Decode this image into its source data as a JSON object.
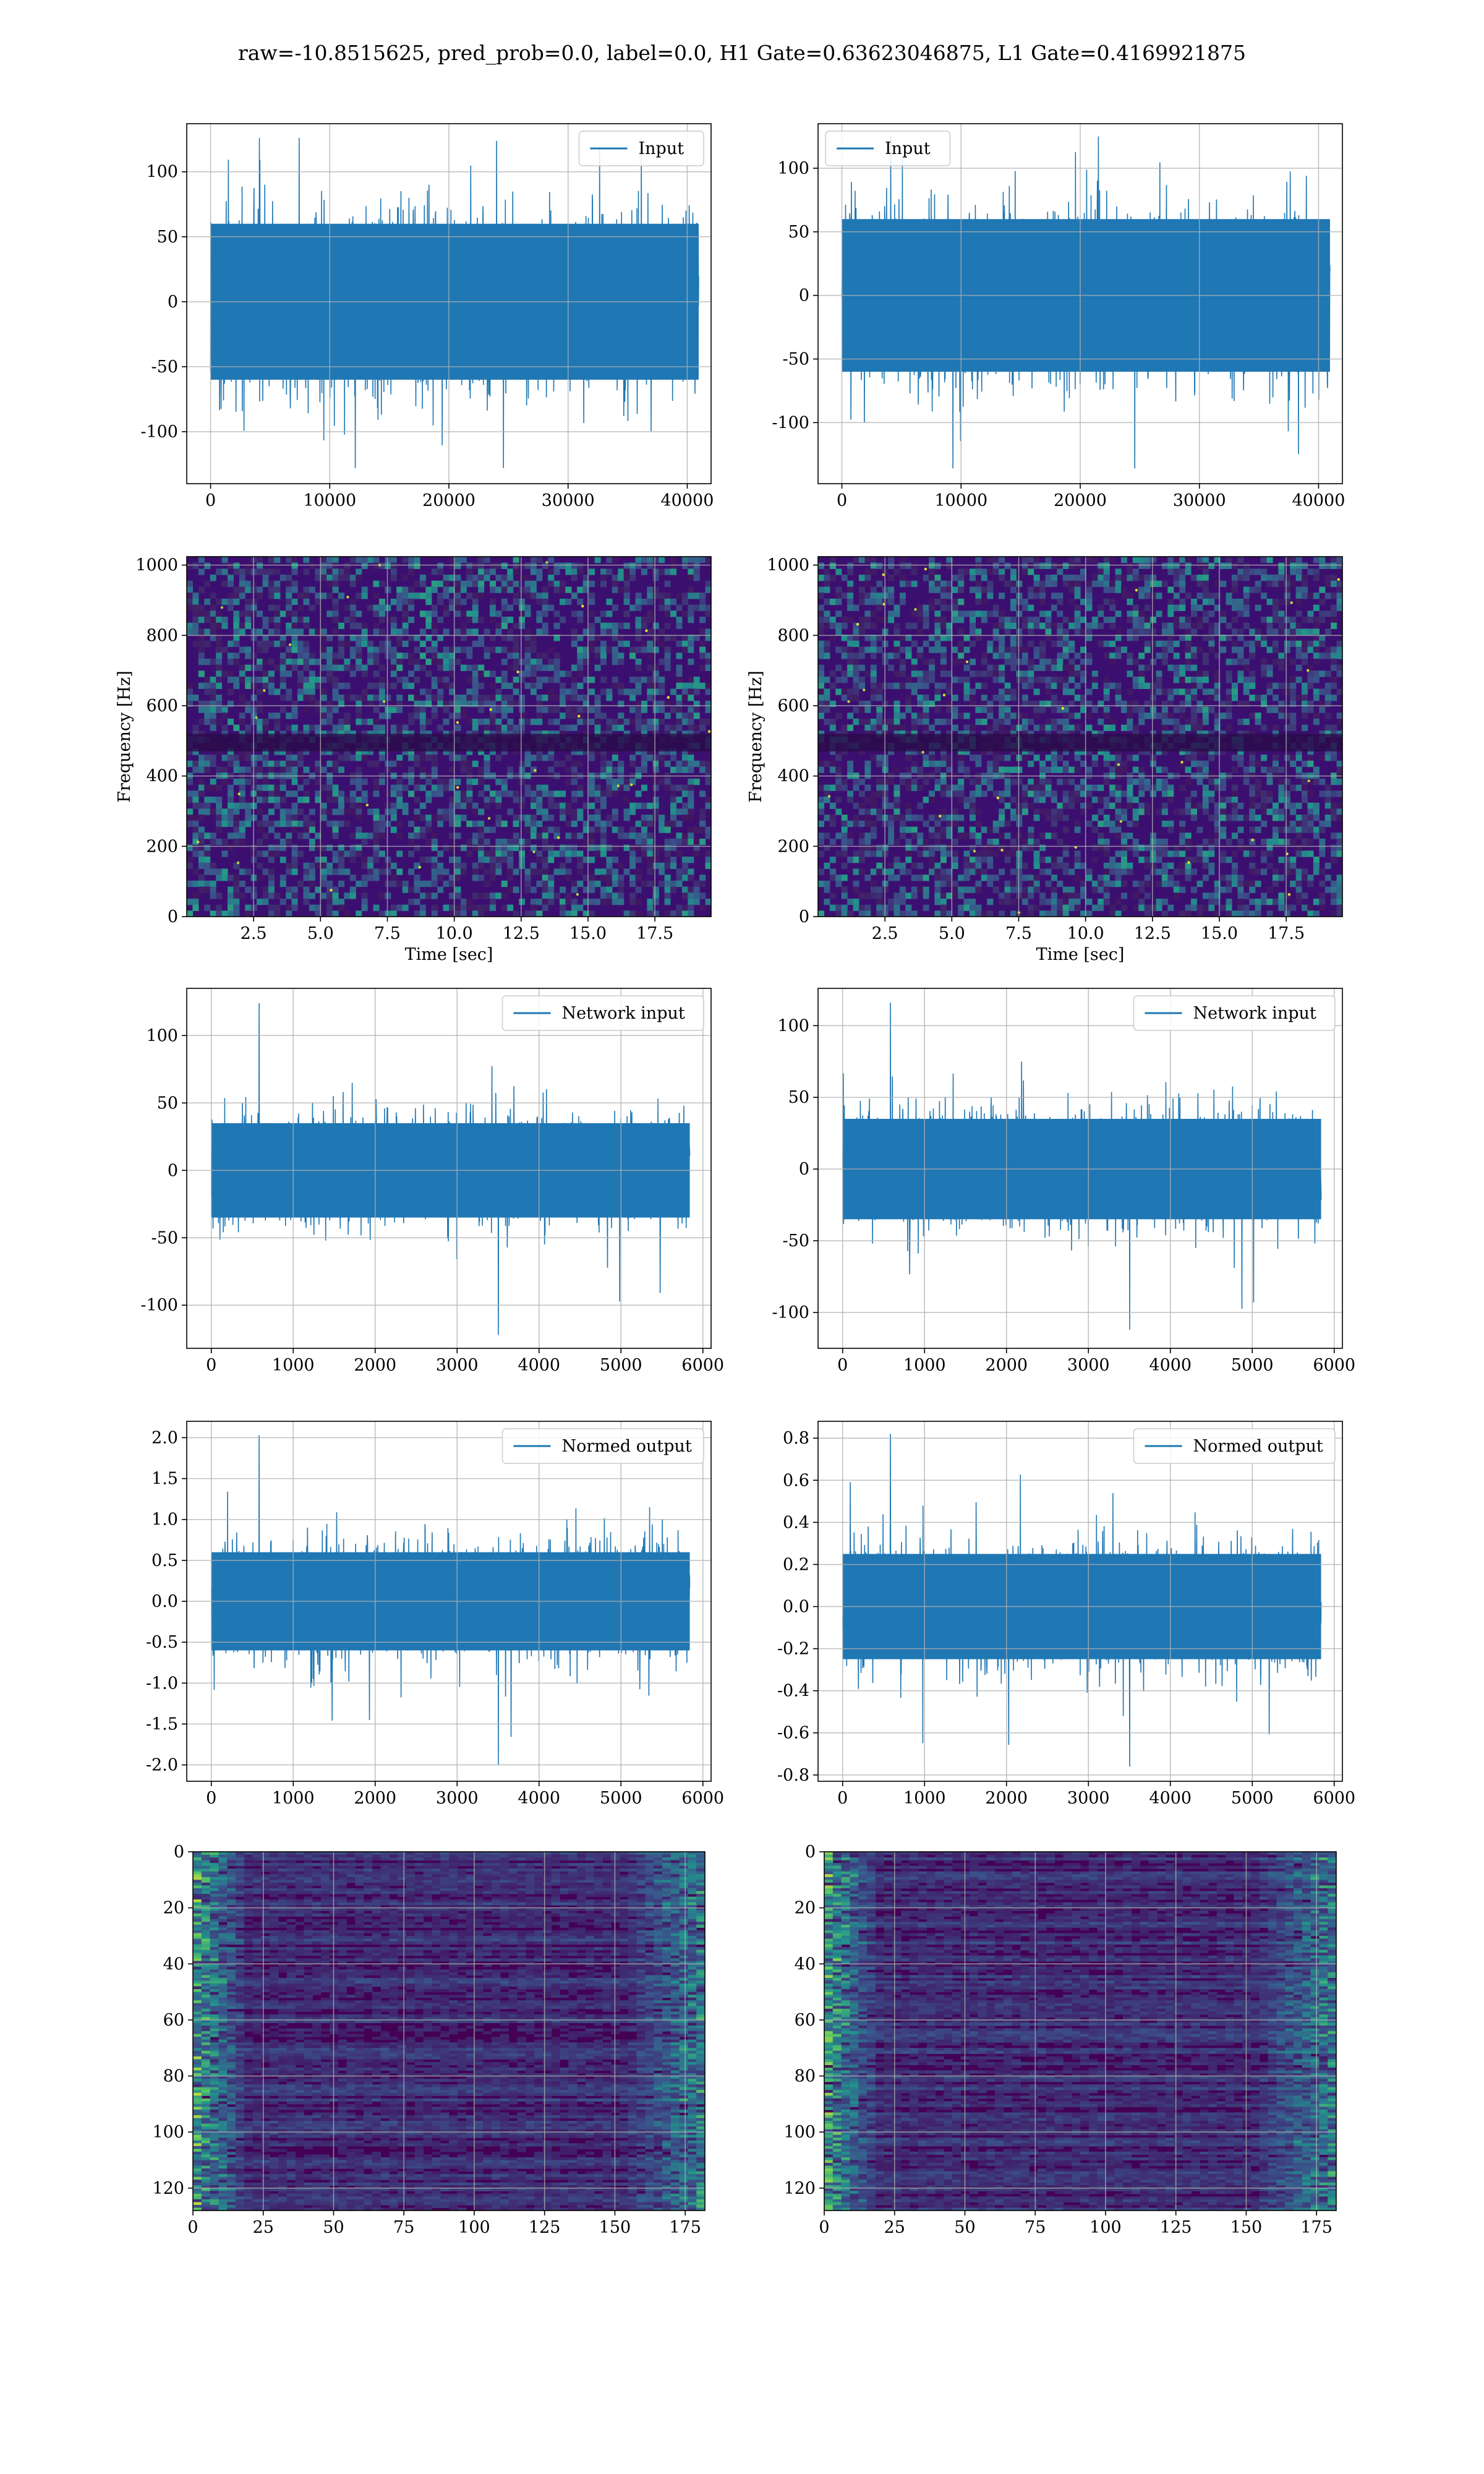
{
  "title": "raw=-10.8515625, pred_prob=0.0, label=0.0, H1 Gate=0.63623046875, L1 Gate=0.4169921875",
  "colors": {
    "line": "#1f77b4",
    "grid": "#b0b0b0",
    "spectro_bg": "#3b0f70",
    "viridis": [
      "#440154",
      "#3b528b",
      "#21918c",
      "#5ec962",
      "#fde725"
    ]
  },
  "chart_data": [
    {
      "panel": "input-left",
      "type": "line",
      "legend": "Input",
      "legend_loc": "upper right",
      "xlim": [
        -2000,
        42000
      ],
      "ylim": [
        -140,
        137
      ],
      "xticks": [
        0,
        10000,
        20000,
        30000,
        40000
      ],
      "yticks": [
        -100,
        -50,
        0,
        50,
        100
      ],
      "grid": true,
      "series": [
        {
          "n_samples": 40960,
          "x_range": [
            0,
            40960
          ],
          "typical_band": [
            -60,
            60
          ],
          "y_min": -128,
          "y_max": 126
        }
      ]
    },
    {
      "panel": "input-right",
      "type": "line",
      "legend": "Input",
      "legend_loc": "upper left",
      "xlim": [
        -2000,
        42000
      ],
      "ylim": [
        -148,
        135
      ],
      "xticks": [
        0,
        10000,
        20000,
        30000,
        40000
      ],
      "yticks": [
        -100,
        -50,
        0,
        50,
        100
      ],
      "grid": true,
      "series": [
        {
          "n_samples": 40960,
          "x_range": [
            0,
            40960
          ],
          "typical_band": [
            -60,
            60
          ],
          "y_min": -136,
          "y_max": 125
        }
      ]
    },
    {
      "panel": "spectrogram-left",
      "type": "heatmap",
      "xlabel": "Time [sec]",
      "ylabel": "Frequency [Hz]",
      "xlim": [
        0,
        19.6
      ],
      "ylim": [
        0,
        1024
      ],
      "xticks": [
        2.5,
        5.0,
        7.5,
        10.0,
        12.5,
        15.0,
        17.5
      ],
      "yticks": [
        0,
        200,
        400,
        600,
        800,
        1000
      ],
      "grid": true,
      "colormap": "viridis",
      "dark_band_hz": [
        470,
        520
      ]
    },
    {
      "panel": "spectrogram-right",
      "type": "heatmap",
      "xlabel": "Time [sec]",
      "ylabel": "Frequency [Hz]",
      "xlim": [
        0,
        19.6
      ],
      "ylim": [
        0,
        1024
      ],
      "xticks": [
        2.5,
        5.0,
        7.5,
        10.0,
        12.5,
        15.0,
        17.5
      ],
      "yticks": [
        0,
        200,
        400,
        600,
        800,
        1000
      ],
      "grid": true,
      "colormap": "viridis",
      "dark_band_hz": [
        470,
        520
      ]
    },
    {
      "panel": "network-input-left",
      "type": "line",
      "legend": "Network input",
      "legend_loc": "upper right",
      "xlim": [
        -300,
        6100
      ],
      "ylim": [
        -132,
        135
      ],
      "xticks": [
        0,
        1000,
        2000,
        3000,
        4000,
        5000,
        6000
      ],
      "yticks": [
        -100,
        -50,
        0,
        50,
        100
      ],
      "grid": true,
      "series": [
        {
          "n_samples": 5840,
          "x_range": [
            0,
            5840
          ],
          "typical_band": [
            -35,
            35
          ],
          "y_min": -122,
          "y_max": 124
        }
      ]
    },
    {
      "panel": "network-input-right",
      "type": "line",
      "legend": "Network input",
      "legend_loc": "upper right",
      "xlim": [
        -300,
        6100
      ],
      "ylim": [
        -125,
        126
      ],
      "xticks": [
        0,
        1000,
        2000,
        3000,
        4000,
        5000,
        6000
      ],
      "yticks": [
        -100,
        -50,
        0,
        50,
        100
      ],
      "grid": true,
      "series": [
        {
          "n_samples": 5840,
          "x_range": [
            0,
            5840
          ],
          "typical_band": [
            -35,
            35
          ],
          "y_min": -112,
          "y_max": 116
        }
      ]
    },
    {
      "panel": "normed-output-left",
      "type": "line",
      "legend": "Normed output",
      "legend_loc": "upper right",
      "xlim": [
        -300,
        6100
      ],
      "ylim": [
        -2.2,
        2.2
      ],
      "xticks": [
        0,
        1000,
        2000,
        3000,
        4000,
        5000,
        6000
      ],
      "yticks": [
        -2.0,
        -1.5,
        -1.0,
        -0.5,
        0.0,
        0.5,
        1.0,
        1.5,
        2.0
      ],
      "grid": true,
      "series": [
        {
          "n_samples": 5840,
          "x_range": [
            0,
            5840
          ],
          "typical_band": [
            -0.6,
            0.6
          ],
          "y_min": -2.0,
          "y_max": 2.03
        }
      ]
    },
    {
      "panel": "normed-output-right",
      "type": "line",
      "legend": "Normed output",
      "legend_loc": "upper right",
      "xlim": [
        -300,
        6100
      ],
      "ylim": [
        -0.83,
        0.88
      ],
      "xticks": [
        0,
        1000,
        2000,
        3000,
        4000,
        5000,
        6000
      ],
      "yticks": [
        -0.8,
        -0.6,
        -0.4,
        -0.2,
        0.0,
        0.2,
        0.4,
        0.6,
        0.8
      ],
      "grid": true,
      "series": [
        {
          "n_samples": 5840,
          "x_range": [
            0,
            5840
          ],
          "typical_band": [
            -0.25,
            0.25
          ],
          "y_min": -0.76,
          "y_max": 0.82
        }
      ]
    },
    {
      "panel": "feature-map-left",
      "type": "heatmap",
      "xlim": [
        0,
        182
      ],
      "ylim": [
        128,
        0
      ],
      "xticks": [
        0,
        25,
        50,
        75,
        100,
        125,
        150,
        175
      ],
      "yticks": [
        0,
        20,
        40,
        60,
        80,
        100,
        120
      ],
      "grid": true,
      "colormap": "viridis",
      "rows": 128,
      "cols": 182
    },
    {
      "panel": "feature-map-right",
      "type": "heatmap",
      "xlim": [
        0,
        182
      ],
      "ylim": [
        128,
        0
      ],
      "xticks": [
        0,
        25,
        50,
        75,
        100,
        125,
        150,
        175
      ],
      "yticks": [
        0,
        20,
        40,
        60,
        80,
        100,
        120
      ],
      "grid": true,
      "colormap": "viridis",
      "rows": 128,
      "cols": 182
    }
  ]
}
